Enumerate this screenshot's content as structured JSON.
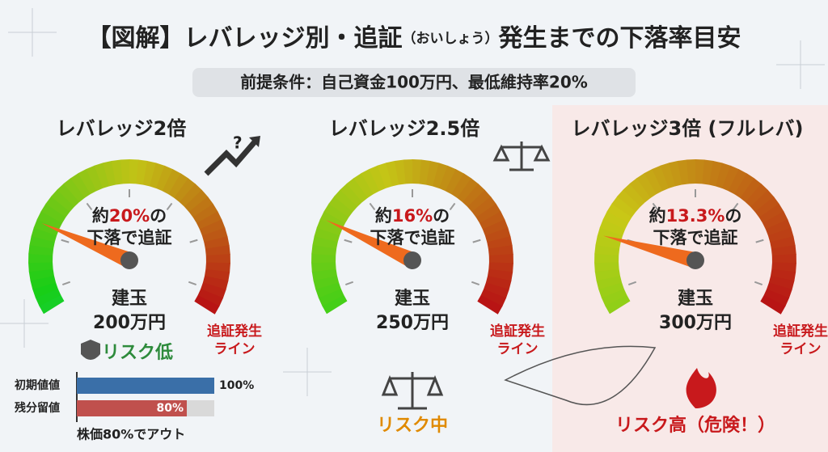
{
  "header": {
    "title": "【図解】レバレッジ別・追証",
    "title_reading": "（おいしょう）",
    "title_suffix": "発生までの下落率目安",
    "premise": "前提条件：自己資金100万円、最低維持率20%"
  },
  "panels": [
    {
      "heading": "レバレッジ2倍",
      "note_prefix": "約",
      "rate": "20%",
      "note_suffix": "の",
      "note_line2": "下落で追証",
      "position_label": "建玉",
      "position_value": "200万円",
      "line_label_1": "追証発生",
      "line_label_2": "ライン",
      "risk": "リスク低"
    },
    {
      "heading": "レバレッジ2.5倍",
      "note_prefix": "約",
      "rate": "16%",
      "note_suffix": "の",
      "note_line2": "下落で追証",
      "position_label": "建玉",
      "position_value": "250万円",
      "line_label_1": "追証発生",
      "line_label_2": "ライン",
      "risk": "リスク中"
    },
    {
      "heading": "レバレッジ3倍 (フルレバ)",
      "note_prefix": "約",
      "rate": "13.3%",
      "note_suffix": "の",
      "note_line2": "下落で追証",
      "position_label": "建玉",
      "position_value": "300万円",
      "line_label_1": "追証発生",
      "line_label_2": "ライン",
      "risk": "リスク高（危険！）"
    }
  ],
  "bars": {
    "labels": [
      "初期値値",
      "残分留値"
    ],
    "values": [
      100,
      80
    ],
    "value_labels": [
      "100%",
      "80%"
    ],
    "caption": "株価80%でアウト"
  }
}
